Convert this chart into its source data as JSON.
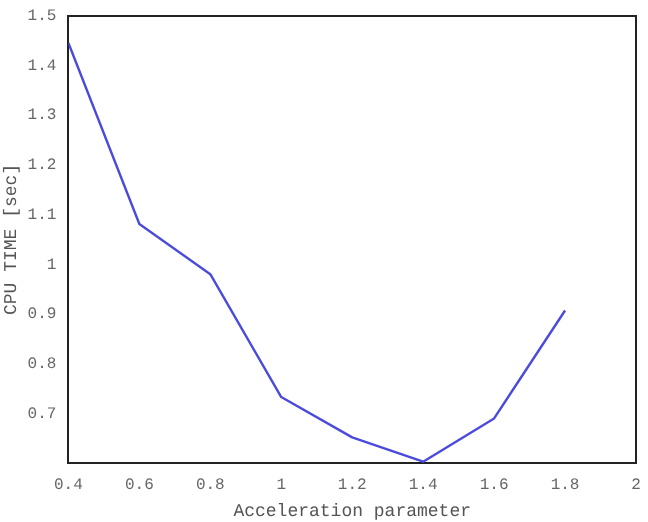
{
  "chart_data": {
    "type": "line",
    "xlabel": "Acceleration parameter",
    "ylabel": "CPU TIME [sec]",
    "x": [
      0.4,
      0.6,
      0.8,
      1.0,
      1.2,
      1.4,
      1.6,
      1.8
    ],
    "series": [
      {
        "color": "#4a4adc",
        "values": [
          1.445,
          1.081,
          0.98,
          0.733,
          0.652,
          0.603,
          0.69,
          0.907
        ]
      }
    ],
    "xlim": [
      0.4,
      2
    ],
    "xticks": [
      0.4,
      0.6,
      0.8,
      1,
      1.2,
      1.4,
      1.6,
      1.8,
      2
    ],
    "ylim": [
      0.6,
      1.5
    ],
    "yticks": [
      0.7,
      0.8,
      0.9,
      1,
      1.1,
      1.2,
      1.3,
      1.4,
      1.5
    ],
    "grid": false,
    "legend": false,
    "marker": "none",
    "line_style": "solid"
  }
}
